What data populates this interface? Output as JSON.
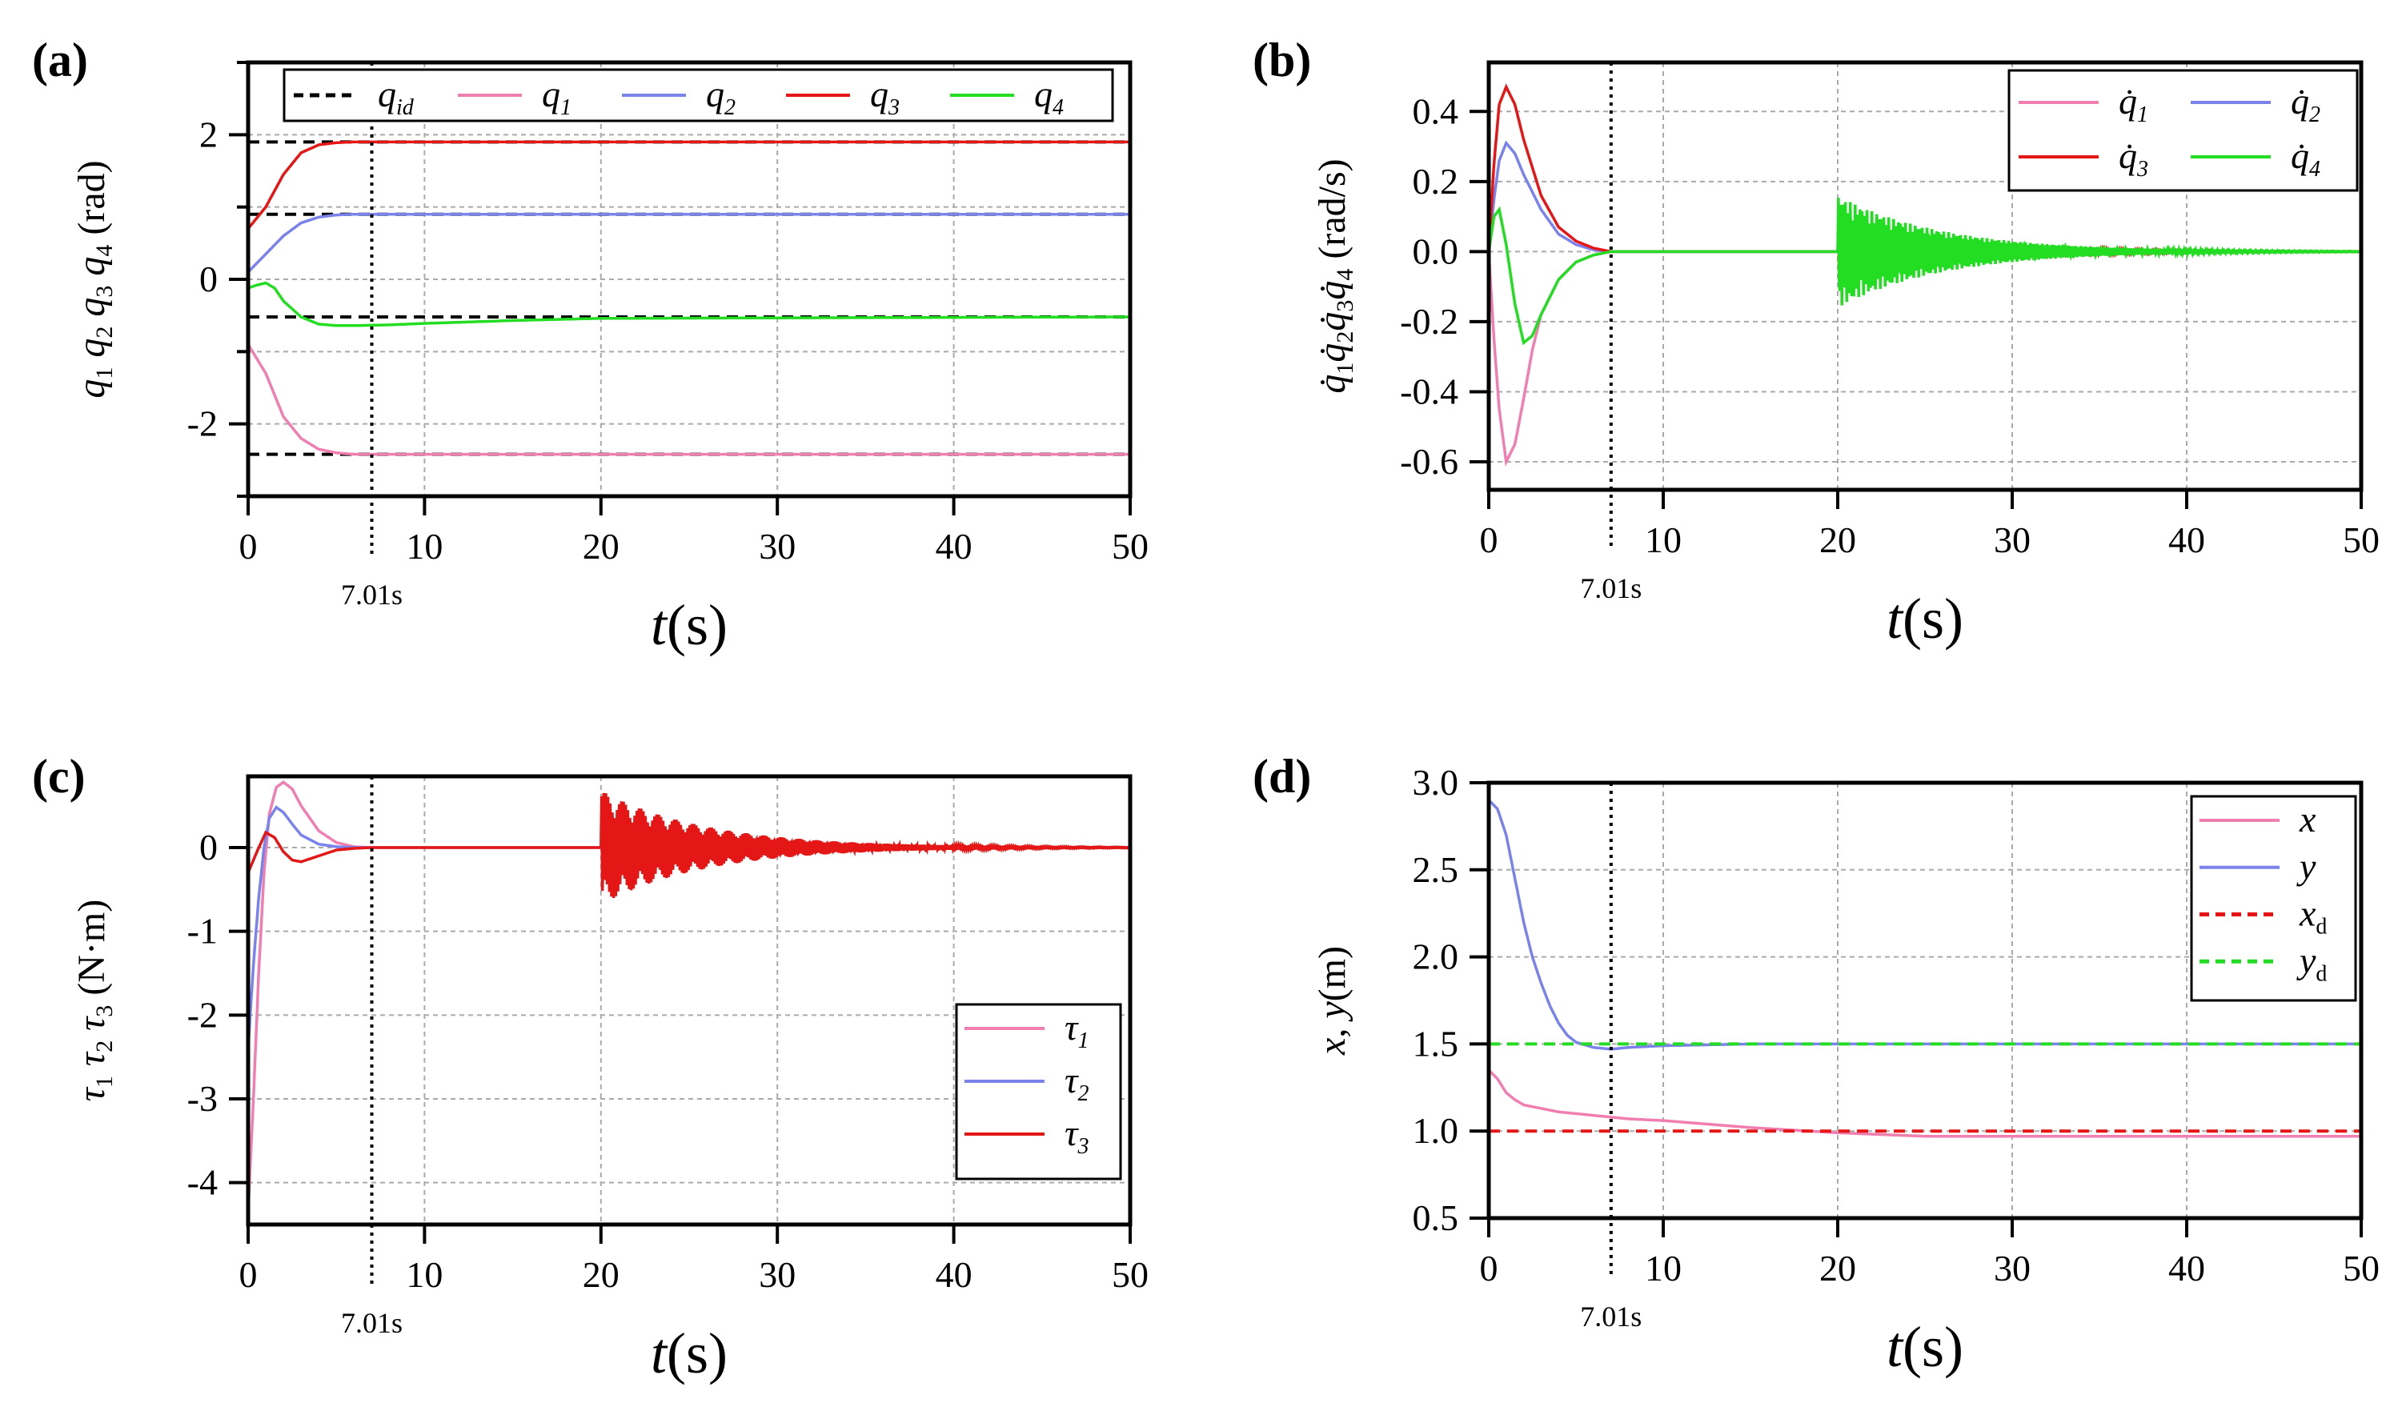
{
  "colors": {
    "pink": "#f07eb0",
    "blue": "#7a82ec",
    "red": "#e51616",
    "green": "#22dd22",
    "black": "#000000",
    "grid": "#aaaaaa",
    "marker": "#000000"
  },
  "common": {
    "marker_time": 7.01,
    "marker_label": "7.01s",
    "xlabel_italic": "t",
    "xlabel_unit": "(s)"
  },
  "chart_data": [
    {
      "id": "a",
      "panel_label": "(a)",
      "type": "line",
      "title": "",
      "ylabel_html": "q1 q2 q3 q4 (rad)",
      "ylabel_parts": [
        {
          "t": "q",
          "i": true
        },
        {
          "t": "1",
          "sub": true
        },
        {
          "t": " q",
          "i": true
        },
        {
          "t": "2",
          "sub": true
        },
        {
          "t": " q",
          "i": true
        },
        {
          "t": "3",
          "sub": true
        },
        {
          "t": " q",
          "i": true
        },
        {
          "t": "4",
          "sub": true
        },
        {
          "t": " (rad)",
          "i": false
        }
      ],
      "xlim": [
        0,
        50
      ],
      "ylim": [
        -3,
        3
      ],
      "xticks": [
        0,
        10,
        20,
        30,
        40,
        50
      ],
      "xtick_labels": [
        "0",
        "10",
        "20",
        "30",
        "40",
        "50"
      ],
      "yticks": [
        2,
        0,
        -2
      ],
      "ytick_labels": [
        "2",
        "0",
        "-2"
      ],
      "yminor": [
        3,
        1,
        -1,
        -3
      ],
      "xgrid": [
        10,
        20,
        30,
        40
      ],
      "ygrid": [
        2,
        1,
        0,
        -1,
        -2
      ],
      "legend": {
        "position": "top",
        "entries": [
          {
            "name": "q",
            "sub": "id",
            "style": "dashed",
            "color": "black"
          },
          {
            "name": "q",
            "sub": "1",
            "style": "solid",
            "color": "pink"
          },
          {
            "name": "q",
            "sub": "2",
            "style": "solid",
            "color": "blue"
          },
          {
            "name": "q",
            "sub": "3",
            "style": "solid",
            "color": "red"
          },
          {
            "name": "q",
            "sub": "4",
            "style": "solid",
            "color": "green"
          }
        ]
      },
      "reference_lines": [
        1.9,
        0.9,
        -0.52,
        -2.42
      ],
      "series": [
        {
          "name": "q1",
          "color": "pink",
          "x": [
            0,
            1,
            2,
            3,
            4,
            5,
            6,
            8,
            50
          ],
          "y": [
            -0.9,
            -1.3,
            -1.9,
            -2.2,
            -2.35,
            -2.4,
            -2.42,
            -2.42,
            -2.42
          ]
        },
        {
          "name": "q2",
          "color": "blue",
          "x": [
            0,
            1,
            2,
            3,
            4,
            5,
            6,
            8,
            50
          ],
          "y": [
            0.1,
            0.35,
            0.6,
            0.78,
            0.86,
            0.89,
            0.9,
            0.9,
            0.9
          ]
        },
        {
          "name": "q3",
          "color": "red",
          "x": [
            0,
            1,
            2,
            3,
            4,
            5,
            6,
            8,
            50
          ],
          "y": [
            0.7,
            1.0,
            1.45,
            1.75,
            1.86,
            1.89,
            1.9,
            1.9,
            1.9
          ]
        },
        {
          "name": "q4",
          "color": "green",
          "x": [
            0,
            0.5,
            1,
            1.5,
            2,
            3,
            4,
            5,
            6,
            8,
            10,
            15,
            20,
            50
          ],
          "y": [
            -0.12,
            -0.08,
            -0.05,
            -0.12,
            -0.3,
            -0.52,
            -0.62,
            -0.64,
            -0.64,
            -0.63,
            -0.61,
            -0.57,
            -0.54,
            -0.52
          ]
        }
      ]
    },
    {
      "id": "b",
      "panel_label": "(b)",
      "type": "line",
      "title": "",
      "ylabel_parts": [
        {
          "t": "q̇",
          "i": true
        },
        {
          "t": "1",
          "sub": true
        },
        {
          "t": "q̇",
          "i": true
        },
        {
          "t": "2",
          "sub": true
        },
        {
          "t": "q̇",
          "i": true
        },
        {
          "t": "3",
          "sub": true
        },
        {
          "t": "q̇",
          "i": true
        },
        {
          "t": "4",
          "sub": true
        },
        {
          "t": " (rad/s)",
          "i": false
        }
      ],
      "xlim": [
        0,
        50
      ],
      "ylim": [
        -0.68,
        0.54
      ],
      "xticks": [
        0,
        10,
        20,
        30,
        40,
        50
      ],
      "xtick_labels": [
        "0",
        "10",
        "20",
        "30",
        "40",
        "50"
      ],
      "yticks": [
        0.4,
        0.2,
        0.0,
        -0.2,
        -0.4,
        -0.6
      ],
      "ytick_labels": [
        "0.4",
        "0.2",
        "0.0",
        "-0.2",
        "-0.4",
        "-0.6"
      ],
      "yminor": [],
      "xgrid": [
        10,
        20,
        30,
        40
      ],
      "ygrid": [
        0.4,
        0.2,
        0.0,
        -0.2,
        -0.4,
        -0.6
      ],
      "legend": {
        "position": "top-right",
        "entries": [
          {
            "name": "q̇",
            "sub": "1",
            "style": "solid",
            "color": "pink"
          },
          {
            "name": "q̇",
            "sub": "2",
            "style": "solid",
            "color": "blue"
          },
          {
            "name": "q̇",
            "sub": "3",
            "style": "solid",
            "color": "red"
          },
          {
            "name": "q̇",
            "sub": "4",
            "style": "solid",
            "color": "green"
          }
        ]
      },
      "series": [
        {
          "name": "dq1",
          "color": "pink",
          "x": [
            0,
            0.3,
            0.6,
            1,
            1.5,
            2,
            2.5,
            3,
            4,
            5,
            6,
            7,
            50
          ],
          "y": [
            0,
            -0.25,
            -0.45,
            -0.6,
            -0.55,
            -0.42,
            -0.28,
            -0.18,
            -0.08,
            -0.03,
            -0.01,
            0,
            0
          ]
        },
        {
          "name": "dq2",
          "color": "blue",
          "x": [
            0,
            0.3,
            0.6,
            1,
            1.5,
            2,
            3,
            4,
            5,
            6,
            7,
            50
          ],
          "y": [
            0,
            0.15,
            0.26,
            0.31,
            0.28,
            0.22,
            0.12,
            0.05,
            0.02,
            0.005,
            0,
            0
          ]
        },
        {
          "name": "dq3",
          "color": "red",
          "x": [
            0,
            0.3,
            0.6,
            1,
            1.5,
            2,
            3,
            4,
            5,
            6,
            7,
            50
          ],
          "y": [
            0,
            0.25,
            0.42,
            0.47,
            0.42,
            0.32,
            0.16,
            0.07,
            0.03,
            0.01,
            0,
            0
          ],
          "burst": {
            "start": 20,
            "end": 50,
            "amp": 0.07,
            "period": 0.5,
            "decay": 6
          }
        },
        {
          "name": "dq4",
          "color": "green",
          "x": [
            0,
            0.3,
            0.6,
            1,
            1.5,
            2,
            2.5,
            3,
            4,
            5,
            6,
            7,
            50
          ],
          "y": [
            0,
            0.1,
            0.12,
            0.02,
            -0.15,
            -0.26,
            -0.24,
            -0.18,
            -0.08,
            -0.03,
            -0.01,
            0,
            0
          ],
          "burst": {
            "start": 20,
            "end": 50,
            "amp": 0.16,
            "period": 0.55,
            "decay": 6
          }
        }
      ]
    },
    {
      "id": "c",
      "panel_label": "(c)",
      "type": "line",
      "title": "",
      "ylabel_parts": [
        {
          "t": "τ",
          "i": true
        },
        {
          "t": "1",
          "sub": true
        },
        {
          "t": " τ",
          "i": true
        },
        {
          "t": "2",
          "sub": true
        },
        {
          "t": " τ",
          "i": true
        },
        {
          "t": "3",
          "sub": true
        },
        {
          "t": " (N·m)",
          "i": false
        }
      ],
      "xlim": [
        0,
        50
      ],
      "ylim": [
        -4.5,
        0.85
      ],
      "xticks": [
        0,
        10,
        20,
        30,
        40,
        50
      ],
      "xtick_labels": [
        "0",
        "10",
        "20",
        "30",
        "40",
        "50"
      ],
      "yticks": [
        0,
        -1,
        -2,
        -3,
        -4
      ],
      "ytick_labels": [
        "0",
        "-1",
        "-2",
        "-3",
        "-4"
      ],
      "yminor": [],
      "xgrid": [
        10,
        20,
        30,
        40
      ],
      "ygrid": [
        0,
        -1,
        -2,
        -3,
        -4
      ],
      "legend": {
        "position": "bottom-right",
        "entries": [
          {
            "name": "τ",
            "sub": "1",
            "style": "solid",
            "color": "pink"
          },
          {
            "name": "τ",
            "sub": "2",
            "style": "solid",
            "color": "blue"
          },
          {
            "name": "τ",
            "sub": "3",
            "style": "solid",
            "color": "red"
          }
        ]
      },
      "series": [
        {
          "name": "tau1",
          "color": "pink",
          "x": [
            0,
            0.3,
            0.6,
            0.9,
            1.2,
            1.6,
            2,
            2.5,
            3,
            4,
            5,
            6,
            7,
            50
          ],
          "y": [
            -4.35,
            -3.0,
            -1.5,
            -0.3,
            0.4,
            0.72,
            0.78,
            0.7,
            0.5,
            0.2,
            0.06,
            0.01,
            0,
            0
          ]
        },
        {
          "name": "tau2",
          "color": "blue",
          "x": [
            0,
            0.3,
            0.6,
            0.9,
            1.2,
            1.6,
            2,
            2.5,
            3,
            4,
            5,
            6,
            50
          ],
          "y": [
            -2.4,
            -1.4,
            -0.6,
            0.0,
            0.35,
            0.48,
            0.42,
            0.28,
            0.15,
            0.04,
            0.01,
            0,
            0
          ]
        },
        {
          "name": "tau3",
          "color": "red",
          "x": [
            0,
            0.5,
            1,
            1.5,
            2,
            2.5,
            3,
            4,
            5,
            6,
            7,
            50
          ],
          "y": [
            -0.3,
            -0.05,
            0.18,
            0.12,
            -0.05,
            -0.15,
            -0.17,
            -0.1,
            -0.03,
            -0.01,
            0,
            0
          ],
          "burst": {
            "start": 20,
            "end": 50,
            "amp": 0.68,
            "period": 0.5,
            "decay": 6
          }
        }
      ]
    },
    {
      "id": "d",
      "panel_label": "(d)",
      "type": "line",
      "title": "",
      "ylabel_parts": [
        {
          "t": "x",
          "i": true
        },
        {
          "t": ", ",
          "i": false
        },
        {
          "t": "y",
          "i": true
        },
        {
          "t": "(m)",
          "i": false
        }
      ],
      "xlim": [
        0,
        50
      ],
      "ylim": [
        0.5,
        3.0
      ],
      "xticks": [
        0,
        10,
        20,
        30,
        40,
        50
      ],
      "xtick_labels": [
        "0",
        "10",
        "20",
        "30",
        "40",
        "50"
      ],
      "yticks": [
        3.0,
        2.5,
        2.0,
        1.5,
        1.0,
        0.5
      ],
      "ytick_labels": [
        "3.0",
        "2.5",
        "2.0",
        "1.5",
        "1.0",
        "0.5"
      ],
      "yminor": [],
      "xgrid": [
        10,
        20,
        30,
        40
      ],
      "ygrid": [
        2.5,
        2.0,
        1.5,
        1.0
      ],
      "legend": {
        "position": "top-right",
        "entries": [
          {
            "name": "x",
            "sub": "",
            "style": "solid",
            "color": "pink"
          },
          {
            "name": "y",
            "sub": "",
            "style": "solid",
            "color": "blue"
          },
          {
            "name": "x",
            "sub": "d",
            "style": "dashed",
            "color": "red"
          },
          {
            "name": "y",
            "sub": "d",
            "style": "dashed",
            "color": "green"
          }
        ]
      },
      "series": [
        {
          "name": "x",
          "color": "pink",
          "x": [
            0,
            0.5,
            1,
            1.5,
            2,
            3,
            4,
            5,
            6,
            7,
            8,
            10,
            15,
            20,
            25,
            30,
            50
          ],
          "y": [
            1.35,
            1.3,
            1.22,
            1.18,
            1.15,
            1.13,
            1.11,
            1.1,
            1.09,
            1.08,
            1.07,
            1.06,
            1.02,
            0.99,
            0.97,
            0.97,
            0.97
          ]
        },
        {
          "name": "y",
          "color": "blue",
          "x": [
            0,
            0.5,
            1,
            1.5,
            2,
            2.5,
            3,
            3.5,
            4,
            4.5,
            5,
            6,
            7,
            8,
            10,
            15,
            20,
            50
          ],
          "y": [
            2.9,
            2.85,
            2.7,
            2.45,
            2.2,
            2.0,
            1.85,
            1.72,
            1.62,
            1.55,
            1.51,
            1.48,
            1.47,
            1.48,
            1.49,
            1.5,
            1.5,
            1.5
          ]
        },
        {
          "name": "xd",
          "color": "red",
          "dashed": true,
          "x": [
            0,
            50
          ],
          "y": [
            1.0,
            1.0
          ]
        },
        {
          "name": "yd",
          "color": "green",
          "dashed": true,
          "x": [
            0,
            50
          ],
          "y": [
            1.5,
            1.5
          ]
        }
      ]
    }
  ]
}
